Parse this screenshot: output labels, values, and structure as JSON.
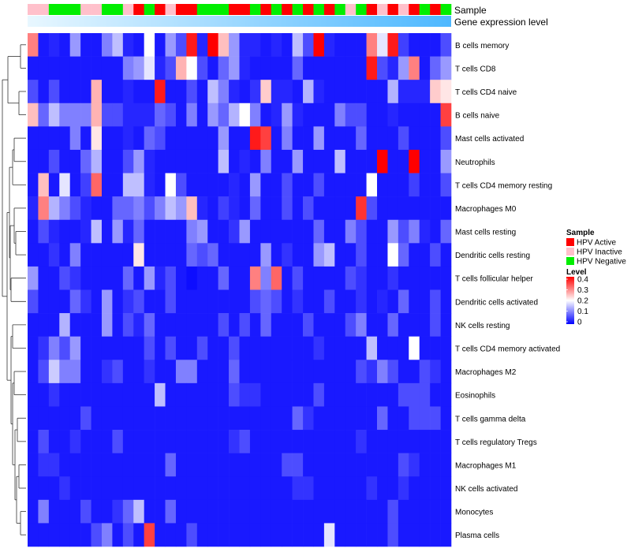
{
  "chart_data": {
    "type": "heatmap",
    "title": "",
    "annotation_labels": [
      "Sample",
      "Gene expression level"
    ],
    "legend_sample_title": "Sample",
    "sample_groups": [
      {
        "name": "HPV Active",
        "color": "#ff0000"
      },
      {
        "name": "HPV Inactive",
        "color": "#ffc0cb"
      },
      {
        "name": "HPV Negative",
        "color": "#00ee00"
      }
    ],
    "sample_annotation": [
      1,
      1,
      2,
      2,
      2,
      1,
      1,
      2,
      2,
      1,
      0,
      2,
      0,
      1,
      0,
      0,
      2,
      2,
      2,
      0,
      0,
      2,
      0,
      2,
      0,
      2,
      0,
      2,
      0,
      2,
      1,
      2,
      0,
      1,
      0,
      1,
      0,
      2,
      0,
      2
    ],
    "gene_expression_bar": {
      "from_color": "#e8f7ff",
      "to_color": "#4db8ff"
    },
    "legend_level_title": "Level",
    "level_ticks": [
      "0.4",
      "0.3",
      "0.2",
      "0.1",
      "0"
    ],
    "level_range": [
      0,
      0.4
    ],
    "rows": [
      "B cells memory",
      "T cells CD8",
      "T cells CD4 naive",
      "B cells naive",
      "Mast cells activated",
      "Neutrophils",
      "T cells CD4 memory resting",
      "Macrophages M0",
      "Mast cells resting",
      "Dendritic cells resting",
      "T cells follicular helper",
      "Dendritic cells activated",
      "NK cells resting",
      "T cells CD4 memory activated",
      "Macrophages M2",
      "Eosinophils",
      "T cells gamma delta",
      "T cells regulatory  Tregs",
      "Macrophages M1",
      "NK cells activated",
      "Monocytes",
      "Plasma cells"
    ],
    "values": [
      [
        0.3,
        0.02,
        0.03,
        0.02,
        0.12,
        0.02,
        0.02,
        0.1,
        0.15,
        0.03,
        0.02,
        0.2,
        0.02,
        0.12,
        0.06,
        0.38,
        0.03,
        0.4,
        0.25,
        0.12,
        0.03,
        0.03,
        0.02,
        0.03,
        0.02,
        0.15,
        0.06,
        0.4,
        0.03,
        0.02,
        0.02,
        0.02,
        0.3,
        0.18,
        0.38,
        0.05,
        0.02,
        0.02,
        0.02,
        0.06
      ],
      [
        0.02,
        0.02,
        0.02,
        0.02,
        0.02,
        0.02,
        0.02,
        0.02,
        0.02,
        0.1,
        0.12,
        0.18,
        0.03,
        0.06,
        0.26,
        0.2,
        0.06,
        0.02,
        0.08,
        0.12,
        0.03,
        0.02,
        0.02,
        0.02,
        0.02,
        0.08,
        0.02,
        0.02,
        0.02,
        0.02,
        0.02,
        0.02,
        0.38,
        0.06,
        0.03,
        0.12,
        0.3,
        0.02,
        0.08,
        0.12
      ],
      [
        0.06,
        0.02,
        0.06,
        0.02,
        0.02,
        0.02,
        0.26,
        0.02,
        0.02,
        0.03,
        0.02,
        0.02,
        0.38,
        0.02,
        0.02,
        0.06,
        0.02,
        0.15,
        0.1,
        0.03,
        0.02,
        0.04,
        0.24,
        0.03,
        0.03,
        0.02,
        0.14,
        0.03,
        0.02,
        0.02,
        0.02,
        0.02,
        0.02,
        0.02,
        0.14,
        0.03,
        0.03,
        0.03,
        0.24,
        0.22
      ],
      [
        0.25,
        0.08,
        0.15,
        0.1,
        0.1,
        0.1,
        0.26,
        0.06,
        0.06,
        0.03,
        0.03,
        0.03,
        0.08,
        0.06,
        0.02,
        0.1,
        0.02,
        0.12,
        0.08,
        0.14,
        0.2,
        0.1,
        0.02,
        0.03,
        0.12,
        0.03,
        0.02,
        0.02,
        0.02,
        0.1,
        0.06,
        0.06,
        0.02,
        0.02,
        0.03,
        0.02,
        0.02,
        0.02,
        0.02,
        0.35
      ],
      [
        0.02,
        0.02,
        0.02,
        0.02,
        0.1,
        0.02,
        0.22,
        0.02,
        0.02,
        0.03,
        0.02,
        0.08,
        0.06,
        0.02,
        0.02,
        0.02,
        0.02,
        0.02,
        0.12,
        0.02,
        0.02,
        0.38,
        0.35,
        0.02,
        0.1,
        0.02,
        0.02,
        0.12,
        0.02,
        0.02,
        0.02,
        0.08,
        0.02,
        0.02,
        0.02,
        0.06,
        0.02,
        0.02,
        0.02,
        0.06
      ],
      [
        0.02,
        0.02,
        0.06,
        0.02,
        0.02,
        0.08,
        0.14,
        0.02,
        0.02,
        0.06,
        0.12,
        0.03,
        0.02,
        0.02,
        0.02,
        0.02,
        0.02,
        0.02,
        0.15,
        0.02,
        0.03,
        0.02,
        0.1,
        0.02,
        0.02,
        0.12,
        0.02,
        0.02,
        0.02,
        0.15,
        0.02,
        0.02,
        0.02,
        0.4,
        0.02,
        0.02,
        0.4,
        0.02,
        0.02,
        0.12
      ],
      [
        0.02,
        0.25,
        0.02,
        0.18,
        0.02,
        0.05,
        0.32,
        0.02,
        0.02,
        0.15,
        0.15,
        0.03,
        0.02,
        0.2,
        0.06,
        0.02,
        0.02,
        0.02,
        0.02,
        0.03,
        0.02,
        0.12,
        0.02,
        0.02,
        0.06,
        0.02,
        0.02,
        0.06,
        0.02,
        0.02,
        0.02,
        0.02,
        0.2,
        0.02,
        0.02,
        0.02,
        0.05,
        0.02,
        0.02,
        0.06
      ],
      [
        0.03,
        0.3,
        0.14,
        0.1,
        0.06,
        0.03,
        0.02,
        0.02,
        0.08,
        0.08,
        0.1,
        0.06,
        0.1,
        0.15,
        0.12,
        0.25,
        0.03,
        0.02,
        0.05,
        0.03,
        0.02,
        0.08,
        0.02,
        0.02,
        0.06,
        0.02,
        0.06,
        0.02,
        0.02,
        0.02,
        0.02,
        0.36,
        0.06,
        0.02,
        0.02,
        0.02,
        0.02,
        0.02,
        0.02,
        0.02
      ],
      [
        0.02,
        0.06,
        0.03,
        0.02,
        0.02,
        0.03,
        0.15,
        0.02,
        0.12,
        0.03,
        0.08,
        0.02,
        0.02,
        0.02,
        0.02,
        0.1,
        0.12,
        0.02,
        0.02,
        0.04,
        0.12,
        0.02,
        0.02,
        0.02,
        0.02,
        0.02,
        0.02,
        0.08,
        0.02,
        0.02,
        0.1,
        0.06,
        0.02,
        0.02,
        0.12,
        0.06,
        0.1,
        0.03,
        0.02,
        0.08
      ],
      [
        0.02,
        0.02,
        0.04,
        0.02,
        0.1,
        0.02,
        0.02,
        0.02,
        0.02,
        0.02,
        0.22,
        0.02,
        0.02,
        0.02,
        0.02,
        0.08,
        0.06,
        0.08,
        0.02,
        0.02,
        0.02,
        0.02,
        0.12,
        0.02,
        0.04,
        0.02,
        0.02,
        0.12,
        0.15,
        0.02,
        0.02,
        0.06,
        0.02,
        0.02,
        0.2,
        0.08,
        0.02,
        0.02,
        0.06,
        0.02
      ],
      [
        0.12,
        0.02,
        0.02,
        0.06,
        0.04,
        0.02,
        0.02,
        0.02,
        0.02,
        0.08,
        0.02,
        0.12,
        0.03,
        0.06,
        0.02,
        0.01,
        0.02,
        0.02,
        0.08,
        0.02,
        0.02,
        0.3,
        0.1,
        0.32,
        0.02,
        0.06,
        0.02,
        0.02,
        0.02,
        0.02,
        0.06,
        0.04,
        0.02,
        0.02,
        0.04,
        0.02,
        0.02,
        0.02,
        0.02,
        0.02
      ],
      [
        0.06,
        0.02,
        0.02,
        0.02,
        0.08,
        0.04,
        0.02,
        0.12,
        0.02,
        0.04,
        0.06,
        0.02,
        0.02,
        0.06,
        0.02,
        0.02,
        0.02,
        0.02,
        0.02,
        0.02,
        0.02,
        0.06,
        0.08,
        0.06,
        0.02,
        0.04,
        0.02,
        0.02,
        0.06,
        0.02,
        0.02,
        0.04,
        0.02,
        0.03,
        0.02,
        0.08,
        0.02,
        0.02,
        0.06,
        0.02
      ],
      [
        0.02,
        0.02,
        0.02,
        0.14,
        0.02,
        0.02,
        0.02,
        0.12,
        0.02,
        0.06,
        0.03,
        0.08,
        0.02,
        0.02,
        0.02,
        0.02,
        0.02,
        0.02,
        0.06,
        0.02,
        0.06,
        0.02,
        0.08,
        0.02,
        0.02,
        0.02,
        0.06,
        0.02,
        0.02,
        0.02,
        0.06,
        0.1,
        0.02,
        0.02,
        0.08,
        0.02,
        0.02,
        0.02,
        0.06,
        0.02
      ],
      [
        0.02,
        0.04,
        0.1,
        0.06,
        0.12,
        0.02,
        0.02,
        0.02,
        0.02,
        0.02,
        0.02,
        0.06,
        0.02,
        0.06,
        0.02,
        0.02,
        0.06,
        0.02,
        0.02,
        0.06,
        0.02,
        0.02,
        0.02,
        0.02,
        0.02,
        0.02,
        0.02,
        0.04,
        0.02,
        0.02,
        0.02,
        0.02,
        0.15,
        0.02,
        0.02,
        0.02,
        0.2,
        0.02,
        0.02,
        0.02
      ],
      [
        0.02,
        0.06,
        0.16,
        0.1,
        0.1,
        0.02,
        0.02,
        0.04,
        0.06,
        0.02,
        0.02,
        0.04,
        0.02,
        0.02,
        0.1,
        0.1,
        0.02,
        0.02,
        0.02,
        0.08,
        0.02,
        0.02,
        0.02,
        0.02,
        0.02,
        0.02,
        0.02,
        0.02,
        0.02,
        0.02,
        0.02,
        0.06,
        0.04,
        0.1,
        0.06,
        0.02,
        0.02,
        0.06,
        0.04,
        0.02
      ],
      [
        0.02,
        0.02,
        0.04,
        0.02,
        0.02,
        0.02,
        0.02,
        0.02,
        0.02,
        0.02,
        0.02,
        0.02,
        0.15,
        0.02,
        0.02,
        0.02,
        0.02,
        0.02,
        0.02,
        0.06,
        0.04,
        0.04,
        0.02,
        0.02,
        0.02,
        0.02,
        0.02,
        0.06,
        0.02,
        0.02,
        0.02,
        0.02,
        0.02,
        0.02,
        0.02,
        0.06,
        0.06,
        0.06,
        0.02,
        0.02
      ],
      [
        0.02,
        0.02,
        0.02,
        0.02,
        0.02,
        0.06,
        0.02,
        0.02,
        0.02,
        0.02,
        0.02,
        0.02,
        0.02,
        0.02,
        0.02,
        0.02,
        0.02,
        0.02,
        0.02,
        0.02,
        0.02,
        0.02,
        0.02,
        0.02,
        0.02,
        0.08,
        0.04,
        0.02,
        0.02,
        0.02,
        0.02,
        0.02,
        0.02,
        0.08,
        0.02,
        0.02,
        0.06,
        0.06,
        0.06,
        0.02
      ],
      [
        0.02,
        0.06,
        0.02,
        0.02,
        0.04,
        0.02,
        0.02,
        0.02,
        0.06,
        0.02,
        0.02,
        0.02,
        0.02,
        0.02,
        0.02,
        0.02,
        0.02,
        0.02,
        0.02,
        0.04,
        0.06,
        0.02,
        0.02,
        0.02,
        0.02,
        0.02,
        0.02,
        0.02,
        0.02,
        0.02,
        0.02,
        0.04,
        0.02,
        0.02,
        0.02,
        0.02,
        0.02,
        0.02,
        0.02,
        0.02
      ],
      [
        0.02,
        0.04,
        0.04,
        0.02,
        0.02,
        0.02,
        0.02,
        0.02,
        0.02,
        0.02,
        0.02,
        0.02,
        0.02,
        0.08,
        0.02,
        0.02,
        0.02,
        0.02,
        0.02,
        0.02,
        0.02,
        0.02,
        0.02,
        0.02,
        0.06,
        0.06,
        0.02,
        0.02,
        0.02,
        0.02,
        0.02,
        0.02,
        0.02,
        0.02,
        0.02,
        0.06,
        0.04,
        0.02,
        0.02,
        0.02
      ],
      [
        0.02,
        0.02,
        0.02,
        0.04,
        0.02,
        0.02,
        0.02,
        0.02,
        0.02,
        0.02,
        0.02,
        0.02,
        0.02,
        0.02,
        0.02,
        0.02,
        0.02,
        0.02,
        0.02,
        0.02,
        0.02,
        0.02,
        0.02,
        0.02,
        0.02,
        0.04,
        0.04,
        0.02,
        0.02,
        0.02,
        0.02,
        0.02,
        0.04,
        0.02,
        0.02,
        0.04,
        0.02,
        0.02,
        0.02,
        0.02
      ],
      [
        0.02,
        0.1,
        0.02,
        0.02,
        0.02,
        0.06,
        0.02,
        0.02,
        0.04,
        0.08,
        0.15,
        0.02,
        0.02,
        0.08,
        0.02,
        0.02,
        0.02,
        0.02,
        0.02,
        0.02,
        0.02,
        0.02,
        0.02,
        0.02,
        0.02,
        0.02,
        0.02,
        0.02,
        0.02,
        0.02,
        0.02,
        0.02,
        0.02,
        0.02,
        0.06,
        0.02,
        0.02,
        0.02,
        0.02,
        0.02
      ],
      [
        0.02,
        0.02,
        0.02,
        0.02,
        0.02,
        0.02,
        0.06,
        0.1,
        0.02,
        0.06,
        0.02,
        0.35,
        0.02,
        0.02,
        0.02,
        0.06,
        0.02,
        0.02,
        0.02,
        0.02,
        0.02,
        0.02,
        0.02,
        0.02,
        0.02,
        0.02,
        0.02,
        0.02,
        0.18,
        0.02,
        0.02,
        0.02,
        0.02,
        0.02,
        0.06,
        0.02,
        0.02,
        0.02,
        0.02,
        0.02
      ]
    ]
  }
}
